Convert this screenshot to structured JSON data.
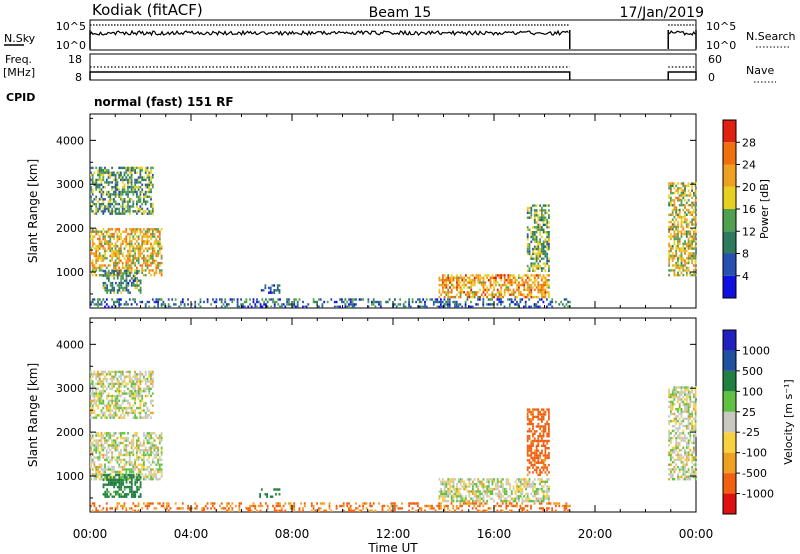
{
  "header": {
    "station": "Kodiak (fitACF)",
    "beam": "Beam 15",
    "date": "17/Jan/2019"
  },
  "noise_panel": {
    "left_label": "N.Sky",
    "left_ticks": [
      "10^5",
      "10^0"
    ],
    "right_ticks": [
      "10^5",
      "10^0"
    ],
    "right_label": "N.Search"
  },
  "freq_panel": {
    "left_label_1": "Freq.",
    "left_label_2": "[MHz]",
    "left_ticks": [
      "18",
      "8"
    ],
    "right_ticks": [
      "60",
      "0"
    ],
    "right_label": "Nave"
  },
  "cpid": {
    "label": "CPID",
    "mode": "normal (fast) 151 RF"
  },
  "colors": {
    "power_scale": [
      "#1010e0",
      "#2850b0",
      "#2e7a5e",
      "#50a050",
      "#e8d020",
      "#f0a020",
      "#f07010",
      "#e02010"
    ],
    "velocity_scale": [
      "#e01010",
      "#f06010",
      "#f0a020",
      "#f8d040",
      "#c8c8c0",
      "#60c040",
      "#208040",
      "#2050a0",
      "#2020c0"
    ]
  },
  "chart_data": [
    {
      "type": "heatmap",
      "name": "power",
      "xlabel": "",
      "ylabel": "Slant Range [km]",
      "x_ticks": [
        "00:00",
        "04:00",
        "08:00",
        "12:00",
        "16:00",
        "20:00",
        "00:00"
      ],
      "xlim_hours": [
        0,
        24
      ],
      "y_ticks": [
        1000,
        2000,
        3000,
        4000
      ],
      "ylim": [
        180,
        4600
      ],
      "colorbar": {
        "label": "Power [dB]",
        "ticks": [
          4,
          8,
          12,
          16,
          20,
          24,
          28
        ],
        "range": [
          0,
          32
        ]
      },
      "echo_regions": [
        {
          "t_start": 0.0,
          "t_end": 2.8,
          "r_min": 900,
          "r_max": 2000,
          "level": 20
        },
        {
          "t_start": 0.0,
          "t_end": 2.5,
          "r_min": 2300,
          "r_max": 3400,
          "level": 12
        },
        {
          "t_start": 0.5,
          "t_end": 2.0,
          "r_min": 500,
          "r_max": 1000,
          "level": 10
        },
        {
          "t_start": 6.7,
          "t_end": 7.5,
          "r_min": 500,
          "r_max": 700,
          "level": 8
        },
        {
          "t_start": 13.8,
          "t_end": 18.2,
          "r_min": 400,
          "r_max": 900,
          "level": 22
        },
        {
          "t_start": 17.3,
          "t_end": 18.2,
          "r_min": 1000,
          "r_max": 2500,
          "level": 14
        },
        {
          "t_start": 22.9,
          "t_end": 24.0,
          "r_min": 900,
          "r_max": 3000,
          "level": 18
        },
        {
          "t_start": 0.0,
          "t_end": 19.0,
          "r_min": 180,
          "r_max": 400,
          "level": 8
        }
      ]
    },
    {
      "type": "heatmap",
      "name": "velocity",
      "xlabel": "Time UT",
      "ylabel": "Slant Range [km]",
      "x_ticks": [
        "00:00",
        "04:00",
        "08:00",
        "12:00",
        "16:00",
        "20:00",
        "00:00"
      ],
      "xlim_hours": [
        0,
        24
      ],
      "y_ticks": [
        1000,
        2000,
        3000,
        4000
      ],
      "ylim": [
        180,
        4600
      ],
      "colorbar": {
        "label": "Velocity [m s⁻¹]",
        "ticks": [
          "1000",
          "500",
          "100",
          "25",
          "-25",
          "-100",
          "-500",
          "-1000"
        ]
      },
      "echo_regions": [
        {
          "t_start": 0.0,
          "t_end": 2.8,
          "r_min": 900,
          "r_max": 2000,
          "level": 0
        },
        {
          "t_start": 0.0,
          "t_end": 2.5,
          "r_min": 2300,
          "r_max": 3400,
          "level": 0
        },
        {
          "t_start": 0.5,
          "t_end": 2.0,
          "r_min": 500,
          "r_max": 1000,
          "level": 150
        },
        {
          "t_start": 6.7,
          "t_end": 7.5,
          "r_min": 500,
          "r_max": 700,
          "level": 150
        },
        {
          "t_start": 13.8,
          "t_end": 18.2,
          "r_min": 400,
          "r_max": 900,
          "level": 0
        },
        {
          "t_start": 17.3,
          "t_end": 18.2,
          "r_min": 1000,
          "r_max": 2500,
          "level": -150
        },
        {
          "t_start": 22.9,
          "t_end": 24.0,
          "r_min": 900,
          "r_max": 3000,
          "level": 0
        },
        {
          "t_start": 0.0,
          "t_end": 19.0,
          "r_min": 180,
          "r_max": 400,
          "level": -120
        }
      ]
    }
  ]
}
